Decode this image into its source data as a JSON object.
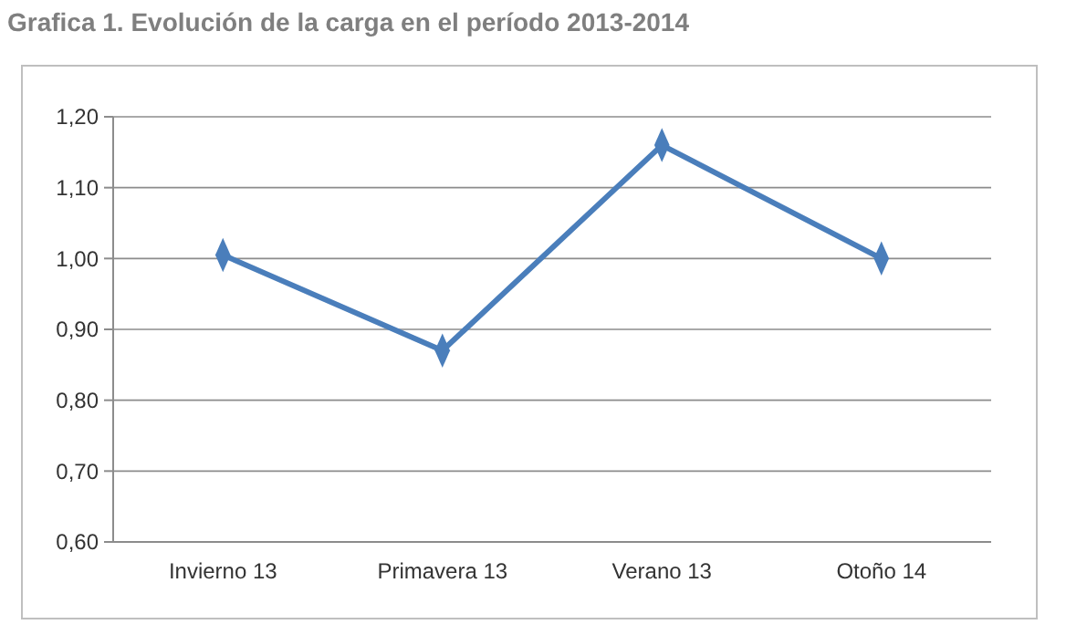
{
  "chart_data": {
    "type": "line",
    "title": "Grafica 1. Evolución de la carga en el período 2013-2014",
    "categories": [
      "Invierno 13",
      "Primavera 13",
      "Verano 13",
      "Otoño 14"
    ],
    "series": [
      {
        "color": "#4a7ebb",
        "values": [
          1.005,
          0.87,
          1.16,
          1.0
        ]
      }
    ],
    "ylim": [
      0.6,
      1.2
    ],
    "yticks": [
      {
        "value": 0.6,
        "label": "0,60"
      },
      {
        "value": 0.7,
        "label": "0,70"
      },
      {
        "value": 0.8,
        "label": "0,80"
      },
      {
        "value": 0.9,
        "label": "0,90"
      },
      {
        "value": 1.0,
        "label": "1,00"
      },
      {
        "value": 1.1,
        "label": "1,10"
      },
      {
        "value": 1.2,
        "label": "1,20"
      }
    ],
    "grid": "y",
    "marker": "diamond",
    "line_style": "solid"
  }
}
